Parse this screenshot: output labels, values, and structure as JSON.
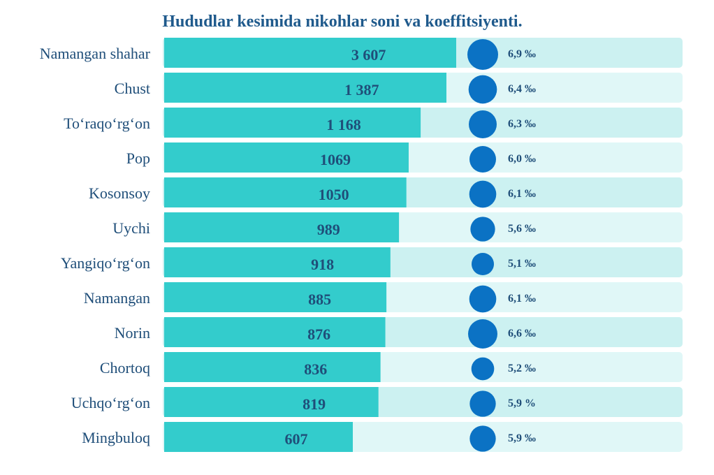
{
  "chart_data": {
    "type": "bar",
    "title": "Hududlar kesimida nikohlar soni va koeffitsiyenti.",
    "categories": [
      "Namangan shahar",
      "Chust",
      "To‘raqo‘rg‘on",
      "Pop",
      "Kosonsoy",
      "Uychi",
      "Yangiqo‘rg‘on",
      "Namangan",
      "Norin",
      "Chortoq",
      "Uchqo‘rg‘on",
      "Mingbuloq"
    ],
    "series": [
      {
        "values": [
          3607,
          1387,
          1168,
          1069,
          1050,
          989,
          918,
          885,
          876,
          836,
          819,
          607
        ]
      },
      {
        "values": [
          6.9,
          6.4,
          6.3,
          6.0,
          6.1,
          5.6,
          5.1,
          6.1,
          6.6,
          5.2,
          5.9,
          5.9
        ]
      }
    ],
    "value_labels": [
      "3 607",
      "1 387",
      "1 168",
      "1069",
      "1050",
      "989",
      "918",
      "885",
      "876",
      "836",
      "819",
      "607"
    ],
    "rate_labels": [
      "6,9 ‰",
      "6,4 ‰",
      "6,3 ‰",
      "6,0 ‰",
      "6,1 ‰",
      "5,6 ‰",
      "5,1 ‰",
      "6,1 ‰",
      "6,6 ‰",
      "5,2 ‰",
      "5,9 %",
      "5,9 ‰"
    ],
    "colors": {
      "bar": "#33cccc",
      "track_a": "#ccf1f1",
      "track_b": "#e0f7f7",
      "circle": "#0b72c4",
      "text": "#1f4e79",
      "title": "#1f5a8c"
    }
  }
}
